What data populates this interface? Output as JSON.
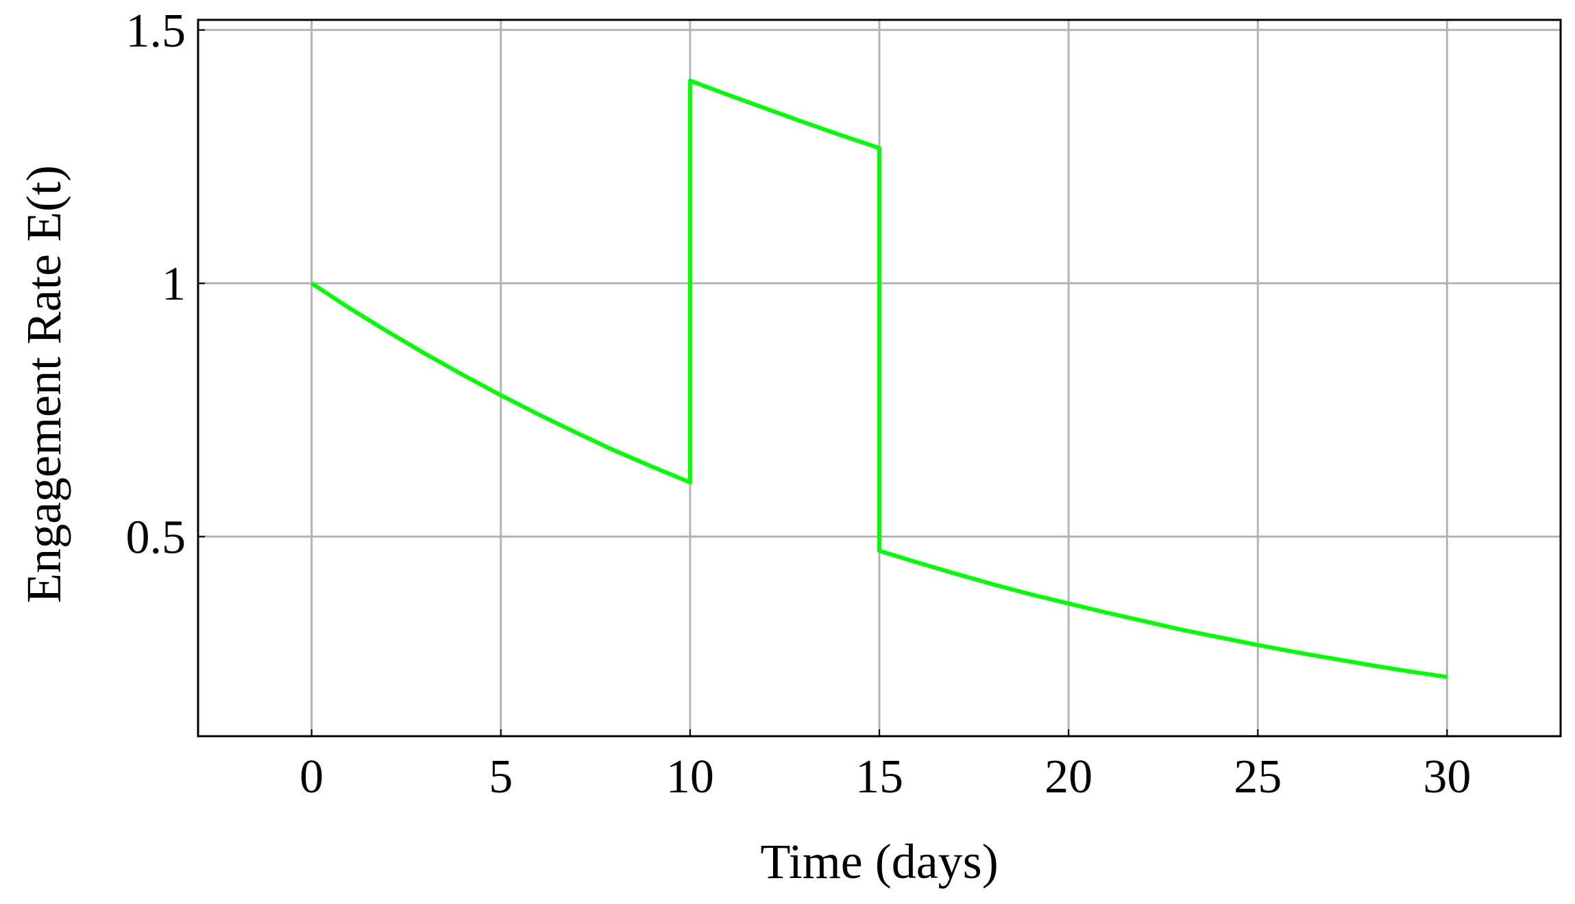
{
  "chart_data": {
    "type": "line",
    "xlabel": "Time (days)",
    "ylabel": "Engagement Rate E(t)",
    "x": [
      0,
      1,
      2,
      3,
      4,
      5,
      6,
      7,
      8,
      9,
      10,
      10,
      11,
      12,
      13,
      14,
      15,
      15,
      16,
      17,
      18,
      19,
      20,
      21,
      22,
      23,
      24,
      25,
      26,
      27,
      28,
      29,
      30
    ],
    "series": [
      {
        "color": "#00ff00",
        "values": [
          1,
          0.951,
          0.905,
          0.861,
          0.819,
          0.779,
          0.741,
          0.705,
          0.67,
          0.638,
          0.607,
          1.4,
          1.372,
          1.345,
          1.318,
          1.292,
          1.267,
          0.472,
          0.449,
          0.427,
          0.406,
          0.386,
          0.368,
          0.35,
          0.333,
          0.316,
          0.301,
          0.286,
          0.272,
          0.259,
          0.246,
          0.234,
          0.223
        ]
      }
    ],
    "xlim": [
      -3,
      33
    ],
    "ylim": [
      0.106,
      1.52
    ],
    "xticks": [
      0,
      5,
      10,
      15,
      20,
      25,
      30
    ],
    "yticks": [
      0.5,
      1,
      1.5
    ],
    "grid": true
  }
}
